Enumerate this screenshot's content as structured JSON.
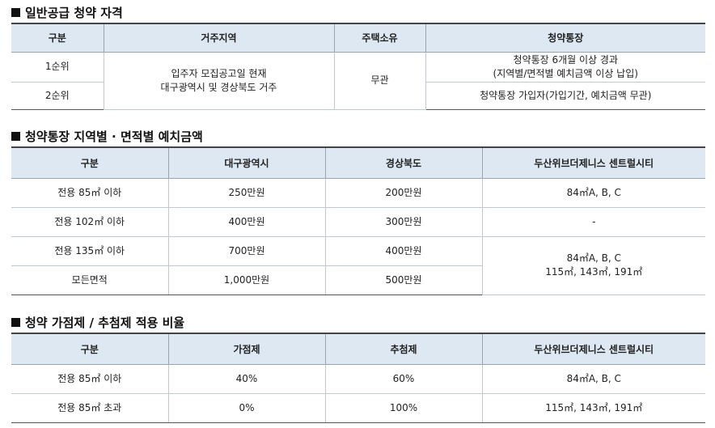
{
  "s1": {
    "title": "일반공급 청약 자격",
    "headers": [
      "구분",
      "거주지역",
      "주택소유",
      "청약통장"
    ],
    "rank1": "1순위",
    "rank2": "2순위",
    "region_l1": "입주자 모집공고일 현재",
    "region_l2": "대구광역시 및 경상북도 거주",
    "ownership": "무관",
    "acct1_l1": "청약통장 6개월 이상 경과",
    "acct1_l2": "(지역별/면적별 예치금액 이상 납입)",
    "acct2": "청약통장 가입자(가입기간, 예치금액 무관)"
  },
  "s2": {
    "title": "청약통장 지역별 · 면적별 예치금액",
    "headers": [
      "구분",
      "대구광역시",
      "경상북도",
      "두산위브더제니스 센트럴시티"
    ],
    "rows": [
      {
        "area": "전용 85㎡ 이하",
        "daegu": "250만원",
        "gyeongbuk": "200만원"
      },
      {
        "area": "전용 102㎡ 이하",
        "daegu": "400만원",
        "gyeongbuk": "300만원"
      },
      {
        "area": "전용 135㎡ 이하",
        "daegu": "700만원",
        "gyeongbuk": "400만원"
      },
      {
        "area": "모든면적",
        "daegu": "1,000만원",
        "gyeongbuk": "500만원"
      }
    ],
    "types_r1": "84㎡A, B, C",
    "types_r2": "-",
    "types_r34_l1": "84㎡A, B, C",
    "types_r34_l2": "115㎡, 143㎡, 191㎡"
  },
  "s3": {
    "title": "청약 가점제 / 추첨제 적용 비율",
    "headers": [
      "구분",
      "가점제",
      "추첨제",
      "두산위브더제니스 센트럴시티"
    ],
    "rows": [
      {
        "area": "전용 85㎡ 이하",
        "points": "40%",
        "lottery": "60%",
        "types": "84㎡A, B, C"
      },
      {
        "area": "전용 85㎡ 초과",
        "points": "0%",
        "lottery": "100%",
        "types": "115㎡, 143㎡, 191㎡"
      }
    ]
  }
}
